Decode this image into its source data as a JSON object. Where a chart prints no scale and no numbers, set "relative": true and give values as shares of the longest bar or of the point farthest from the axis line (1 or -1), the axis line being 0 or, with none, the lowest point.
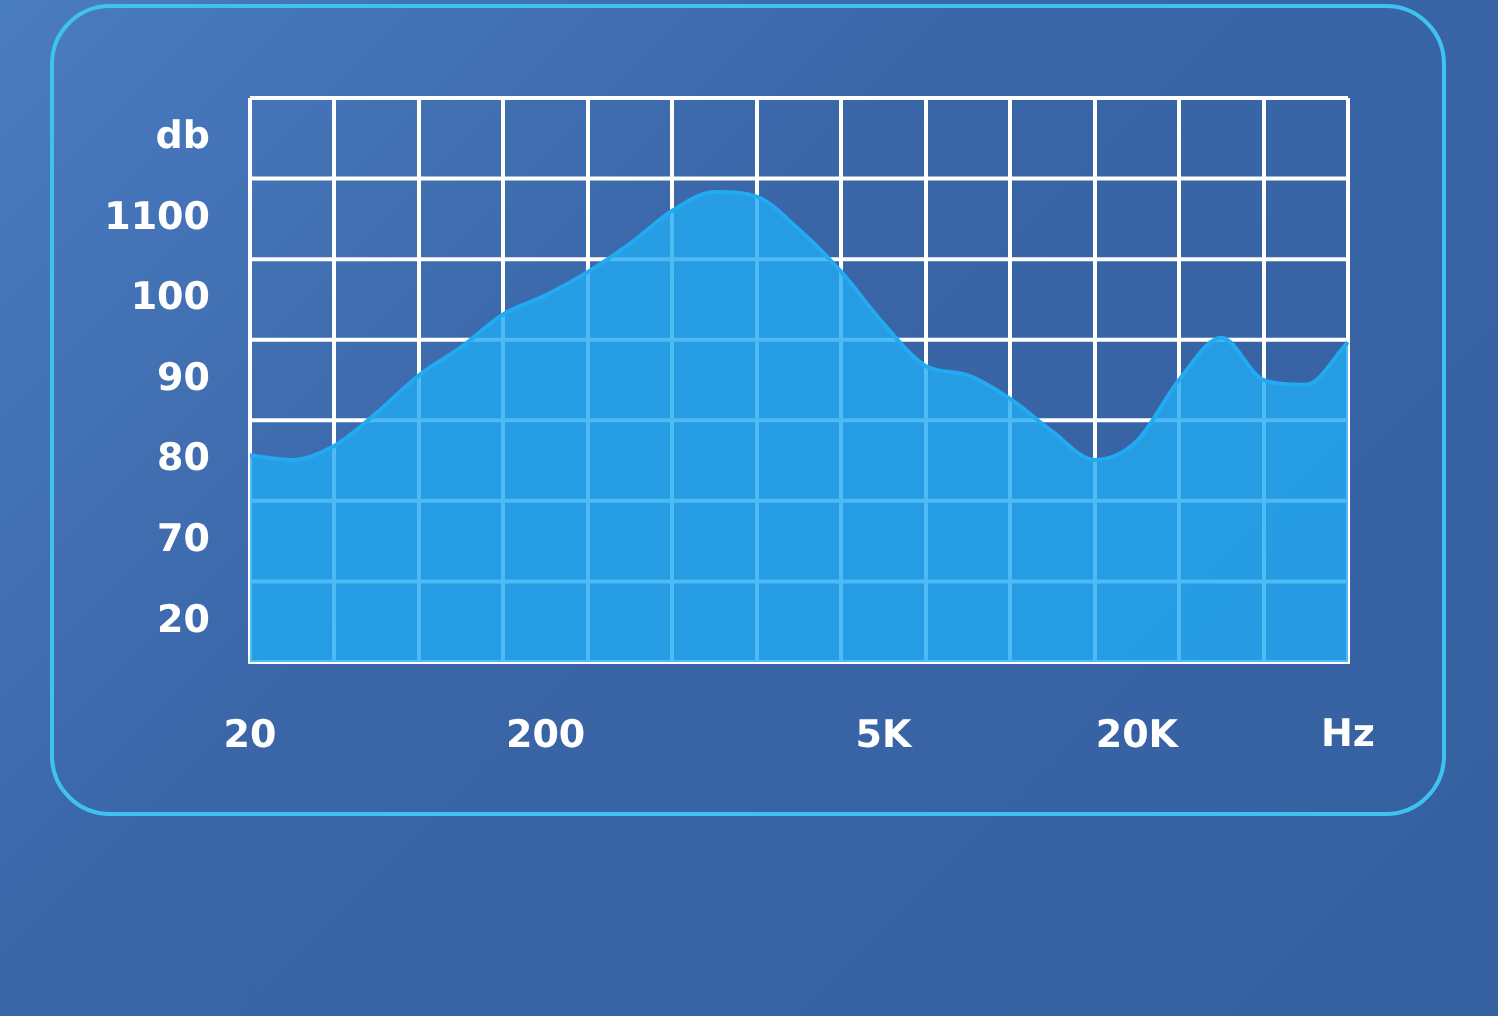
{
  "chart_data": {
    "type": "area",
    "xlabel": "Hz",
    "ylabel": "db",
    "color": "#22aaf2",
    "grid": true,
    "marker": "none",
    "relative": true,
    "annotations": [
      "20",
      "70",
      "80",
      "90",
      "100",
      "1100"
    ],
    "categories": [
      "20",
      null,
      null,
      null,
      null,
      null,
      null,
      "200",
      null,
      null,
      null,
      null,
      null,
      null,
      null,
      "5K",
      null,
      null,
      null,
      null,
      null,
      "20K",
      null,
      null,
      null,
      null,
      null
    ],
    "values": [
      0.44,
      0.43,
      0.46,
      0.53,
      0.61,
      0.67,
      0.74,
      0.78,
      0.83,
      0.89,
      0.96,
      1,
      0.99,
      0.92,
      0.83,
      0.72,
      0.63,
      0.61,
      0.56,
      0.49,
      0.43,
      0.47,
      0.6,
      0.69,
      0.6,
      0.59,
      0.68
    ]
  }
}
